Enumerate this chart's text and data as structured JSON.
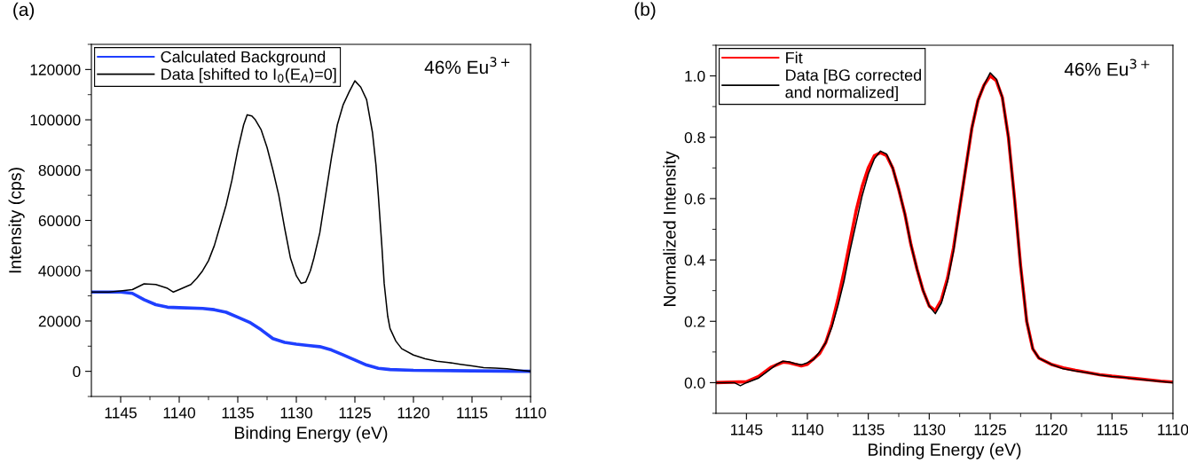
{
  "chart_data": [
    {
      "type": "line",
      "title": "(a)",
      "xlabel": "Binding Energy (eV)",
      "ylabel": "Intensity (cps)",
      "annotations": [
        "46% Eu$^{3+}$"
      ],
      "legend": "top left",
      "marker": "none",
      "line_style": "solid",
      "grid": false,
      "xlim": [
        1147.5,
        1110
      ],
      "xticks": [
        1145,
        1140,
        1135,
        1130,
        1125,
        1120,
        1115,
        1110,
        {
          "value": 1142.5,
          "label": null
        },
        {
          "value": 1137.5,
          "label": null
        },
        {
          "value": 1132.5,
          "label": null
        },
        {
          "value": 1127.5,
          "label": null
        },
        {
          "value": 1122.5,
          "label": null
        },
        {
          "value": 1117.5,
          "label": null
        },
        {
          "value": 1112.5,
          "label": null
        }
      ],
      "ylim": [
        -10000,
        130000
      ],
      "yticks": [
        0,
        20000,
        40000,
        60000,
        80000,
        100000,
        120000,
        {
          "value": -10000,
          "label": null
        },
        {
          "value": 10000,
          "label": null
        },
        {
          "value": 30000,
          "label": null
        },
        {
          "value": 50000,
          "label": null
        },
        {
          "value": 70000,
          "label": null
        },
        {
          "value": 90000,
          "label": null
        },
        {
          "value": 110000,
          "label": null
        },
        {
          "value": 130000,
          "label": null
        }
      ],
      "series": [
        {
          "name": "Calculated Background",
          "color": "#1f3fff",
          "x": [
            1147.5,
            1145,
            1144,
            1143,
            1142,
            1141,
            1140,
            1138,
            1137,
            1136,
            1135,
            1134,
            1133,
            1132,
            1131,
            1130,
            1129,
            1128,
            1127,
            1126,
            1125,
            1124,
            1123,
            1122,
            1120,
            1115,
            1110
          ],
          "values": [
            31500,
            31500,
            31000,
            28500,
            26500,
            25500,
            25300,
            25000,
            24500,
            23500,
            21500,
            19500,
            16500,
            13000,
            11500,
            10800,
            10300,
            9800,
            8500,
            6500,
            4500,
            2500,
            1200,
            700,
            400,
            200,
            0
          ]
        },
        {
          "name": "Data [shifted to I$_{0}$(E$_{A}$)=0]",
          "color": "#000000",
          "x": [
            1147.5,
            1146,
            1145,
            1144,
            1143,
            1142,
            1141,
            1140.5,
            1140,
            1139,
            1138.5,
            1138,
            1137.5,
            1137,
            1136.5,
            1136,
            1135.5,
            1135,
            1134.5,
            1134.2,
            1133.8,
            1133.5,
            1133,
            1132.5,
            1132,
            1131.5,
            1131,
            1130.5,
            1130,
            1129.6,
            1129.2,
            1128.8,
            1128.5,
            1128,
            1127.5,
            1127,
            1126.5,
            1126,
            1125.5,
            1125,
            1124.5,
            1124,
            1123.5,
            1123.2,
            1123,
            1122.7,
            1122.5,
            1122.2,
            1122,
            1121.5,
            1121,
            1120,
            1119,
            1118,
            1117,
            1116,
            1115,
            1114,
            1113,
            1112,
            1111,
            1110
          ],
          "values": [
            31500,
            31500,
            32000,
            32500,
            34800,
            34500,
            33000,
            31500,
            32500,
            34500,
            37000,
            40000,
            44000,
            50000,
            58000,
            66000,
            76000,
            88000,
            98000,
            102000,
            101500,
            100000,
            96000,
            89000,
            80000,
            70000,
            57000,
            45000,
            38000,
            35000,
            35500,
            40000,
            45000,
            55000,
            70000,
            85000,
            98000,
            106000,
            111000,
            115500,
            113000,
            108000,
            95000,
            82000,
            70000,
            50000,
            35000,
            22000,
            17000,
            12000,
            9000,
            6500,
            5000,
            4000,
            3500,
            2800,
            2200,
            1500,
            1300,
            1000,
            500,
            0
          ]
        }
      ]
    },
    {
      "type": "line",
      "title": "(b)",
      "xlabel": "Binding Energy (eV)",
      "ylabel": "Normalized Intensity",
      "annotations": [
        "46% Eu$^{3+}$"
      ],
      "legend": "top left",
      "marker": "none",
      "line_style": "solid",
      "grid": false,
      "xlim": [
        1147.5,
        1110
      ],
      "xticks": [
        1145,
        1140,
        1135,
        1130,
        1125,
        1120,
        1115,
        1110,
        {
          "value": 1142.5,
          "label": null
        },
        {
          "value": 1137.5,
          "label": null
        },
        {
          "value": 1132.5,
          "label": null
        },
        {
          "value": 1127.5,
          "label": null
        },
        {
          "value": 1122.5,
          "label": null
        },
        {
          "value": 1117.5,
          "label": null
        },
        {
          "value": 1112.5,
          "label": null
        }
      ],
      "ylim": [
        -0.1,
        1.1
      ],
      "yticks": [
        {
          "value": 0,
          "label": "0.0"
        },
        0.2,
        0.4,
        0.6,
        0.8,
        {
          "value": 1,
          "label": "1.0"
        },
        {
          "value": -0.1,
          "label": null
        },
        {
          "value": 0.1,
          "label": null
        },
        {
          "value": 0.3,
          "label": null
        },
        {
          "value": 0.5,
          "label": null
        },
        {
          "value": 0.7,
          "label": null
        },
        {
          "value": 0.9,
          "label": null
        },
        {
          "value": 1.1,
          "label": null
        }
      ],
      "series": [
        {
          "name": "Fit",
          "color": "#ff0000",
          "x": [
            1147.5,
            1145,
            1144,
            1143,
            1142,
            1141.5,
            1141,
            1140.5,
            1140,
            1139,
            1138.5,
            1138,
            1137.5,
            1137,
            1136.5,
            1136,
            1135.5,
            1135,
            1134.5,
            1134,
            1133.5,
            1133,
            1132.5,
            1132,
            1131.5,
            1131,
            1130.5,
            1130,
            1129.5,
            1129,
            1128.5,
            1128,
            1127.5,
            1127,
            1126.5,
            1126,
            1125.5,
            1125,
            1124.5,
            1124,
            1123.5,
            1123,
            1122.5,
            1122,
            1121.5,
            1121,
            1120,
            1119,
            1118,
            1117,
            1116,
            1115,
            1114,
            1113,
            1112,
            1111,
            1110
          ],
          "values": [
            0,
            0.003,
            0.02,
            0.05,
            0.067,
            0.065,
            0.06,
            0.055,
            0.06,
            0.095,
            0.13,
            0.19,
            0.27,
            0.36,
            0.46,
            0.56,
            0.64,
            0.7,
            0.74,
            0.75,
            0.74,
            0.7,
            0.63,
            0.55,
            0.45,
            0.37,
            0.3,
            0.25,
            0.235,
            0.27,
            0.34,
            0.44,
            0.57,
            0.7,
            0.83,
            0.92,
            0.97,
            1.0,
            0.985,
            0.93,
            0.8,
            0.6,
            0.38,
            0.2,
            0.11,
            0.08,
            0.06,
            0.048,
            0.04,
            0.033,
            0.026,
            0.021,
            0.017,
            0.013,
            0.009,
            0.005,
            0.002
          ]
        },
        {
          "name": "Data [BG corrected\nand normalized]",
          "color": "#000000",
          "x": [
            1147.5,
            1146,
            1145.5,
            1145,
            1144,
            1143,
            1142.5,
            1142,
            1141.5,
            1141,
            1140.5,
            1140,
            1139.5,
            1139,
            1138.5,
            1138,
            1137.5,
            1137,
            1136.5,
            1136,
            1135.5,
            1135,
            1134.5,
            1134,
            1133.5,
            1133,
            1132.5,
            1132,
            1131.5,
            1131,
            1130.5,
            1130,
            1129.5,
            1129,
            1128.5,
            1128,
            1127.5,
            1127,
            1126.5,
            1126,
            1125.5,
            1125,
            1124.5,
            1124,
            1123.5,
            1123,
            1122.5,
            1122,
            1121.5,
            1121,
            1120,
            1119,
            1118,
            1117,
            1116,
            1115,
            1114,
            1113,
            1112,
            1111,
            1110
          ],
          "values": [
            0,
            0,
            -0.01,
            0,
            0.015,
            0.045,
            0.06,
            0.07,
            0.068,
            0.062,
            0.058,
            0.065,
            0.075,
            0.1,
            0.13,
            0.18,
            0.25,
            0.33,
            0.43,
            0.52,
            0.61,
            0.68,
            0.73,
            0.755,
            0.745,
            0.7,
            0.63,
            0.55,
            0.45,
            0.37,
            0.3,
            0.25,
            0.225,
            0.26,
            0.33,
            0.43,
            0.57,
            0.7,
            0.83,
            0.92,
            0.97,
            1.01,
            0.99,
            0.93,
            0.8,
            0.6,
            0.38,
            0.2,
            0.11,
            0.08,
            0.06,
            0.045,
            0.038,
            0.032,
            0.025,
            0.02,
            0.017,
            0.012,
            0.008,
            0.004,
            0
          ]
        }
      ]
    }
  ]
}
